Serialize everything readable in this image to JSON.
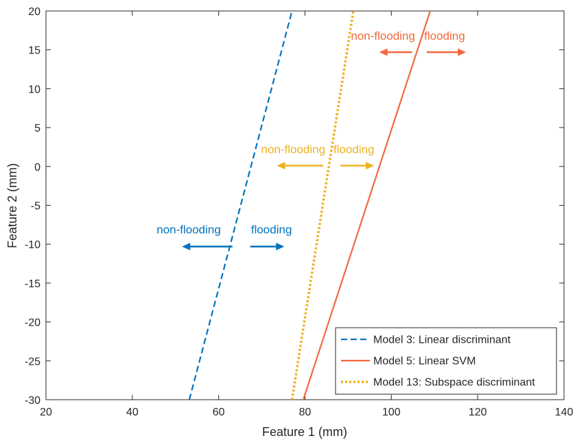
{
  "chart_data": {
    "type": "line",
    "xlabel": "Feature 1 (mm)",
    "ylabel": "Feature 2 (mm)",
    "xlim": [
      20,
      140
    ],
    "ylim": [
      -30,
      20
    ],
    "xticks": [
      20,
      40,
      60,
      80,
      100,
      120,
      140
    ],
    "yticks": [
      20,
      15,
      10,
      5,
      0,
      -5,
      -10,
      -15,
      -20,
      -25,
      -30
    ],
    "grid": false,
    "legend_position": "bottom-right",
    "series": [
      {
        "name": "Model 3: Linear discriminant",
        "style": "dashed",
        "color": "#0072BD",
        "x": [
          53.2,
          77.0
        ],
        "y": [
          -30,
          20
        ]
      },
      {
        "name": "Model 5: Linear SVM",
        "style": "solid",
        "color": "#F2683E",
        "x": [
          79.6,
          109.0
        ],
        "y": [
          -30,
          20
        ]
      },
      {
        "name": "Model 13: Subspace discriminant",
        "style": "dotted",
        "color": "#EDB120",
        "x": [
          77.0,
          91.2
        ],
        "y": [
          -30,
          20
        ]
      }
    ],
    "annotations": [
      {
        "color": "#0072BD",
        "y": -10.3,
        "left_text": "non-flooding",
        "right_text": "flooding",
        "text_y": -8.6,
        "left_text_x": 60.5,
        "right_text_x": 67.5,
        "arrow_left": [
          63.2,
          51.5
        ],
        "arrow_right": [
          67.3,
          75.2
        ]
      },
      {
        "color": "#EDB120",
        "y": 0.1,
        "left_text": "non-flooding",
        "right_text": "flooding",
        "text_y": 1.7,
        "left_text_x": 84.7,
        "right_text_x": 86.6,
        "arrow_left": [
          84.2,
          73.5
        ],
        "arrow_right": [
          88.2,
          96.0
        ]
      },
      {
        "color": "#F2683E",
        "y": 14.7,
        "left_text": "non-flooding",
        "right_text": "flooding",
        "text_y": 16.3,
        "left_text_x": 105.5,
        "right_text_x": 107.6,
        "arrow_left": [
          104.8,
          97.2
        ],
        "arrow_right": [
          108.2,
          117.3
        ]
      }
    ]
  }
}
